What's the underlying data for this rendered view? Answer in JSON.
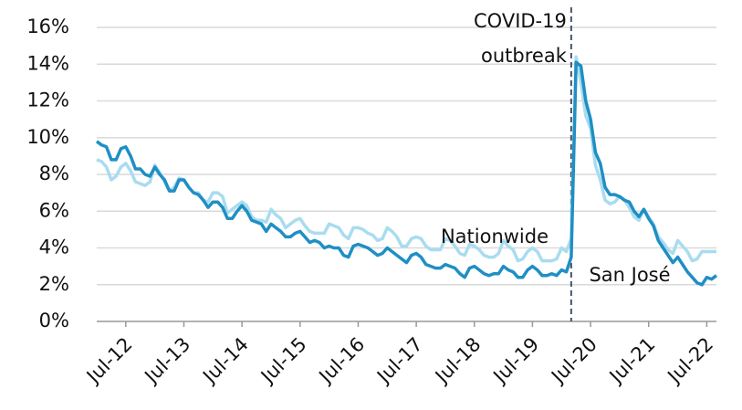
{
  "chart_data": {
    "type": "line",
    "x": [
      "2012-01",
      "2012-02",
      "2012-03",
      "2012-04",
      "2012-05",
      "2012-06",
      "2012-07",
      "2012-08",
      "2012-09",
      "2012-10",
      "2012-11",
      "2012-12",
      "2013-01",
      "2013-02",
      "2013-03",
      "2013-04",
      "2013-05",
      "2013-06",
      "2013-07",
      "2013-08",
      "2013-09",
      "2013-10",
      "2013-11",
      "2013-12",
      "2014-01",
      "2014-02",
      "2014-03",
      "2014-04",
      "2014-05",
      "2014-06",
      "2014-07",
      "2014-08",
      "2014-09",
      "2014-10",
      "2014-11",
      "2014-12",
      "2015-01",
      "2015-02",
      "2015-03",
      "2015-04",
      "2015-05",
      "2015-06",
      "2015-07",
      "2015-08",
      "2015-09",
      "2015-10",
      "2015-11",
      "2015-12",
      "2016-01",
      "2016-02",
      "2016-03",
      "2016-04",
      "2016-05",
      "2016-06",
      "2016-07",
      "2016-08",
      "2016-09",
      "2016-10",
      "2016-11",
      "2016-12",
      "2017-01",
      "2017-02",
      "2017-03",
      "2017-04",
      "2017-05",
      "2017-06",
      "2017-07",
      "2017-08",
      "2017-09",
      "2017-10",
      "2017-11",
      "2017-12",
      "2018-01",
      "2018-02",
      "2018-03",
      "2018-04",
      "2018-05",
      "2018-06",
      "2018-07",
      "2018-08",
      "2018-09",
      "2018-10",
      "2018-11",
      "2018-12",
      "2019-01",
      "2019-02",
      "2019-03",
      "2019-04",
      "2019-05",
      "2019-06",
      "2019-07",
      "2019-08",
      "2019-09",
      "2019-10",
      "2019-11",
      "2019-12",
      "2020-01",
      "2020-02",
      "2020-03",
      "2020-04",
      "2020-05",
      "2020-06",
      "2020-07",
      "2020-08",
      "2020-09",
      "2020-10",
      "2020-11",
      "2020-12",
      "2021-01",
      "2021-02",
      "2021-03",
      "2021-04",
      "2021-05",
      "2021-06",
      "2021-07",
      "2021-08",
      "2021-09",
      "2021-10",
      "2021-11",
      "2021-12",
      "2022-01",
      "2022-02",
      "2022-03",
      "2022-04",
      "2022-05",
      "2022-06",
      "2022-07",
      "2022-08",
      "2022-09"
    ],
    "series": [
      {
        "name": "Nationwide",
        "color": "#a9dcef",
        "values": [
          8.8,
          8.7,
          8.4,
          7.7,
          7.9,
          8.4,
          8.6,
          8.2,
          7.6,
          7.5,
          7.4,
          7.6,
          8.5,
          8.1,
          7.6,
          7.1,
          7.3,
          7.8,
          7.7,
          7.3,
          7.0,
          7.0,
          6.6,
          6.5,
          7.0,
          7.0,
          6.8,
          5.9,
          6.1,
          6.3,
          6.5,
          6.3,
          5.7,
          5.5,
          5.5,
          5.4,
          6.1,
          5.8,
          5.6,
          5.1,
          5.3,
          5.5,
          5.6,
          5.2,
          4.9,
          4.8,
          4.8,
          4.8,
          5.3,
          5.2,
          5.1,
          4.7,
          4.5,
          5.1,
          5.1,
          5.0,
          4.8,
          4.7,
          4.4,
          4.5,
          5.1,
          4.9,
          4.6,
          4.1,
          4.1,
          4.5,
          4.6,
          4.5,
          4.1,
          3.9,
          3.9,
          3.9,
          4.5,
          4.4,
          4.1,
          3.7,
          3.6,
          4.2,
          4.1,
          3.9,
          3.6,
          3.5,
          3.5,
          3.7,
          4.4,
          4.1,
          3.9,
          3.3,
          3.4,
          3.8,
          4.0,
          3.8,
          3.3,
          3.3,
          3.3,
          3.4,
          4.0,
          3.8,
          4.5,
          14.4,
          13.0,
          11.2,
          10.5,
          8.5,
          7.7,
          6.6,
          6.4,
          6.5,
          6.8,
          6.6,
          6.2,
          5.7,
          5.5,
          6.1,
          5.7,
          5.3,
          4.6,
          4.3,
          3.9,
          3.7,
          4.4,
          4.1,
          3.8,
          3.3,
          3.4,
          3.8,
          3.8,
          3.8,
          3.8
        ]
      },
      {
        "name": "San José",
        "color": "#1f8fc4",
        "values": [
          9.8,
          9.6,
          9.5,
          8.8,
          8.8,
          9.4,
          9.5,
          9.0,
          8.3,
          8.3,
          8.0,
          7.9,
          8.4,
          8.0,
          7.7,
          7.1,
          7.1,
          7.7,
          7.7,
          7.3,
          7.0,
          6.9,
          6.6,
          6.2,
          6.5,
          6.5,
          6.2,
          5.6,
          5.6,
          6.0,
          6.3,
          6.0,
          5.5,
          5.4,
          5.3,
          4.9,
          5.3,
          5.1,
          4.9,
          4.6,
          4.6,
          4.8,
          4.9,
          4.6,
          4.3,
          4.4,
          4.3,
          4.0,
          4.1,
          4.0,
          4.0,
          3.6,
          3.5,
          4.1,
          4.2,
          4.1,
          4.0,
          3.8,
          3.6,
          3.7,
          4.0,
          3.8,
          3.6,
          3.4,
          3.2,
          3.6,
          3.7,
          3.5,
          3.1,
          3.0,
          2.9,
          2.9,
          3.1,
          3.0,
          2.9,
          2.6,
          2.4,
          2.9,
          3.0,
          2.8,
          2.6,
          2.5,
          2.6,
          2.6,
          3.0,
          2.8,
          2.7,
          2.4,
          2.4,
          2.8,
          3.0,
          2.8,
          2.5,
          2.5,
          2.6,
          2.5,
          2.8,
          2.7,
          3.5,
          14.1,
          13.9,
          12.0,
          11.0,
          9.2,
          8.6,
          7.3,
          6.9,
          6.9,
          6.8,
          6.6,
          6.5,
          6.0,
          5.7,
          6.1,
          5.6,
          5.2,
          4.4,
          4.0,
          3.6,
          3.2,
          3.5,
          3.1,
          2.7,
          2.4,
          2.1,
          2.0,
          2.4,
          2.3,
          2.5
        ]
      }
    ],
    "ylim": [
      0,
      16
    ],
    "yticks": [
      {
        "value": 0,
        "label": "0%"
      },
      {
        "value": 2,
        "label": "2%"
      },
      {
        "value": 4,
        "label": "4%"
      },
      {
        "value": 6,
        "label": "6%"
      },
      {
        "value": 8,
        "label": "8%"
      },
      {
        "value": 10,
        "label": "10%"
      },
      {
        "value": 12,
        "label": "12%"
      },
      {
        "value": 14,
        "label": "14%"
      },
      {
        "value": 16,
        "label": "16%"
      }
    ],
    "xlim": [
      "2012-01",
      "2022-09"
    ],
    "xticks": [
      {
        "value": "2012-07",
        "label": "Jul-12"
      },
      {
        "value": "2013-07",
        "label": "Jul-13"
      },
      {
        "value": "2014-07",
        "label": "Jul-14"
      },
      {
        "value": "2015-07",
        "label": "Jul-15"
      },
      {
        "value": "2016-07",
        "label": "Jul-16"
      },
      {
        "value": "2017-07",
        "label": "Jul-17"
      },
      {
        "value": "2018-07",
        "label": "Jul-18"
      },
      {
        "value": "2019-07",
        "label": "Jul-19"
      },
      {
        "value": "2020-07",
        "label": "Jul-20"
      },
      {
        "value": "2021-07",
        "label": "Jul-21"
      },
      {
        "value": "2022-07",
        "label": "Jul-22"
      }
    ],
    "grid": true,
    "annotation": {
      "x": "2020-03",
      "lines": [
        "COVID-19",
        "outbreak"
      ]
    }
  }
}
